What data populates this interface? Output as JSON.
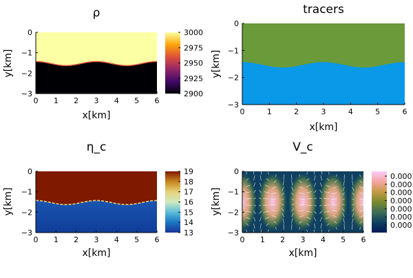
{
  "chart_data": [
    {
      "type": "heatmap",
      "title": "ρ",
      "xlabel": "x[km]",
      "ylabel": "y[km]",
      "xlim": [
        0,
        6
      ],
      "ylim": [
        -3,
        0
      ],
      "xticks": [
        "0",
        "1",
        "2",
        "3",
        "4",
        "5",
        "6"
      ],
      "yticks": [
        "0",
        "−1",
        "−2",
        "−3"
      ],
      "interface": {
        "mean_depth_km": -1.53,
        "amplitude_km": 0.1,
        "wavelength_km": 3
      },
      "upper_value": 3000,
      "lower_value": 2900,
      "colorbar": {
        "ticks": [
          "3000",
          "2975",
          "2950",
          "2925",
          "2900"
        ],
        "range": [
          2900,
          3000
        ],
        "colormap": "inferno",
        "colors": [
          "#000004",
          "#420a68",
          "#932667",
          "#dd513a",
          "#fca50a",
          "#fcffa4"
        ]
      },
      "colors": {
        "upper": "#fcffa4",
        "lower": "#000004",
        "edge": "#dd513a"
      }
    },
    {
      "type": "heatmap",
      "title": "tracers",
      "xlabel": "x[km]",
      "ylabel": "y[km]",
      "xlim": [
        0,
        6
      ],
      "ylim": [
        -3,
        0
      ],
      "xticks": [
        "0",
        "1",
        "2",
        "3",
        "4",
        "5",
        "6"
      ],
      "yticks": [
        "0",
        "−1",
        "−2",
        "−3"
      ],
      "interface": {
        "mean_depth_km": -1.53,
        "amplitude_km": 0.1,
        "wavelength_km": 3
      },
      "colors": {
        "upper": "#6b9a3a",
        "lower": "#0a98e8"
      }
    },
    {
      "type": "heatmap",
      "title": "η_c",
      "xlabel": "x[km]",
      "ylabel": "y[km]",
      "xlim": [
        0,
        6
      ],
      "ylim": [
        -3,
        0
      ],
      "xticks": [
        "0",
        "1",
        "2",
        "3",
        "4",
        "5",
        "6"
      ],
      "yticks": [
        "0",
        "−1",
        "−2",
        "−3"
      ],
      "interface": {
        "mean_depth_km": -1.53,
        "amplitude_km": 0.1,
        "wavelength_km": 3
      },
      "upper_value": 19,
      "lower_value": 13,
      "colorbar": {
        "ticks": [
          "19",
          "18",
          "17",
          "16",
          "15",
          "14",
          "13"
        ],
        "range": [
          13,
          19
        ],
        "colormap": "roma",
        "colors": [
          "#1a3399",
          "#1a77c2",
          "#5cbdd9",
          "#cfe9c0",
          "#e6d27a",
          "#c7861f",
          "#7f1900"
        ]
      },
      "colors": {
        "upper": "#7f1900",
        "lower": "#0f3d99",
        "edge": "#e6d27a"
      }
    },
    {
      "type": "heatmap",
      "title": "V_c",
      "xlabel": "x[km]",
      "ylabel": "y[km]",
      "xlim": [
        0,
        6
      ],
      "ylim": [
        -3,
        0
      ],
      "xticks": [
        "0",
        "1",
        "2",
        "3",
        "4",
        "5",
        "6"
      ],
      "yticks": [
        "0",
        "−1",
        "−2",
        "−3"
      ],
      "hotspots_x_km": [
        0,
        1.5,
        3,
        4.5,
        6
      ],
      "hotspot_depth_km": -1.5,
      "colorbar": {
        "ticks": [
          "0.000",
          "0.000",
          "0.000",
          "0.000",
          "0.000",
          "0.000",
          "0.000"
        ],
        "colormap": "batlow",
        "colors": [
          "#011959",
          "#10405f",
          "#3c6d56",
          "#7a8a2e",
          "#c49a45",
          "#f6a5a2",
          "#faccfa"
        ]
      },
      "colors": {
        "background": "#104060",
        "mid": "#4f7a4a",
        "hot": "#fac3e8",
        "arrows": "#ffffff"
      }
    }
  ]
}
